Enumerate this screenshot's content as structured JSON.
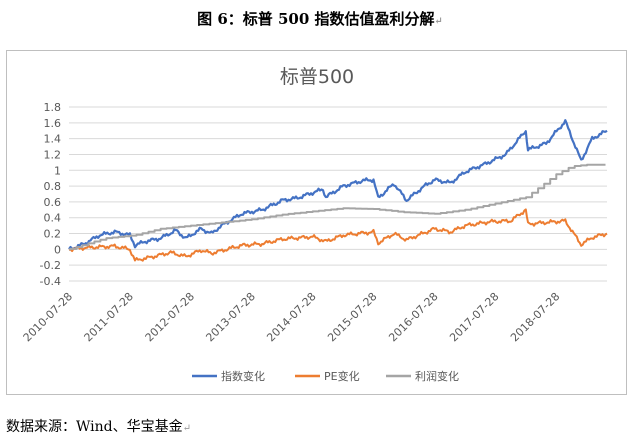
{
  "caption": "图 6：标普 500 指数估值盈利分解",
  "caption_mark": "↵",
  "source_note": "数据来源：Wind、华宝基金",
  "source_mark": "↵",
  "colors": {
    "index": "#4472c4",
    "pe": "#ed7d31",
    "profit": "#a5a5a5",
    "grid": "#d9d9d9",
    "axis_text": "#595959",
    "title": "#595959"
  },
  "chart_data": {
    "type": "line",
    "title": "标普500",
    "xlabel": "",
    "ylabel": "",
    "ylim": [
      -0.4,
      1.8
    ],
    "y_ticks": [
      "1.8",
      "1.6",
      "1.4",
      "1.2",
      "1",
      "0.8",
      "0.6",
      "0.4",
      "0.2",
      "0",
      "-0.2",
      "-0.4"
    ],
    "y_tick_values": [
      1.8,
      1.6,
      1.4,
      1.2,
      1.0,
      0.8,
      0.6,
      0.4,
      0.2,
      0,
      -0.2,
      -0.4
    ],
    "x_range": [
      "2010-07-28",
      "2019-05-28"
    ],
    "x_ticks": [
      "2010-07-28",
      "2011-07-28",
      "2012-07-28",
      "2013-07-28",
      "2014-07-28",
      "2015-07-28",
      "2016-07-28",
      "2017-07-28",
      "2018-07-28"
    ],
    "grid": "horizontal",
    "legend_position": "bottom",
    "series": [
      {
        "name": "指数变化",
        "color": "#4472c4",
        "points": [
          [
            "2010-07-28",
            0.0
          ],
          [
            "2010-10-28",
            0.07
          ],
          [
            "2011-01-28",
            0.18
          ],
          [
            "2011-04-28",
            0.22
          ],
          [
            "2011-07-28",
            0.18
          ],
          [
            "2011-08-28",
            0.05
          ],
          [
            "2011-10-28",
            0.1
          ],
          [
            "2012-01-28",
            0.14
          ],
          [
            "2012-04-28",
            0.24
          ],
          [
            "2012-06-28",
            0.14
          ],
          [
            "2012-09-28",
            0.26
          ],
          [
            "2012-11-28",
            0.2
          ],
          [
            "2013-01-28",
            0.3
          ],
          [
            "2013-05-28",
            0.45
          ],
          [
            "2013-09-28",
            0.5
          ],
          [
            "2014-01-28",
            0.62
          ],
          [
            "2014-04-28",
            0.65
          ],
          [
            "2014-09-28",
            0.76
          ],
          [
            "2014-10-15",
            0.66
          ],
          [
            "2015-01-28",
            0.8
          ],
          [
            "2015-05-28",
            0.87
          ],
          [
            "2015-07-28",
            0.88
          ],
          [
            "2015-08-25",
            0.65
          ],
          [
            "2015-11-28",
            0.83
          ],
          [
            "2016-02-11",
            0.62
          ],
          [
            "2016-05-28",
            0.8
          ],
          [
            "2016-07-28",
            0.88
          ],
          [
            "2016-11-01",
            0.84
          ],
          [
            "2017-01-28",
            0.98
          ],
          [
            "2017-05-28",
            1.08
          ],
          [
            "2017-09-28",
            1.2
          ],
          [
            "2018-01-26",
            1.5
          ],
          [
            "2018-02-08",
            1.26
          ],
          [
            "2018-05-28",
            1.34
          ],
          [
            "2018-09-20",
            1.62
          ],
          [
            "2018-12-24",
            1.12
          ],
          [
            "2019-02-28",
            1.4
          ],
          [
            "2019-05-28",
            1.5
          ]
        ]
      },
      {
        "name": "PE变化",
        "color": "#ed7d31",
        "points": [
          [
            "2010-07-28",
            0.0
          ],
          [
            "2010-10-28",
            0.02
          ],
          [
            "2011-04-28",
            0.04
          ],
          [
            "2011-07-28",
            0.0
          ],
          [
            "2011-08-28",
            -0.14
          ],
          [
            "2011-11-28",
            -0.1
          ],
          [
            "2012-03-28",
            -0.04
          ],
          [
            "2012-06-28",
            -0.09
          ],
          [
            "2012-09-28",
            -0.01
          ],
          [
            "2012-11-28",
            -0.05
          ],
          [
            "2013-05-28",
            0.05
          ],
          [
            "2013-09-28",
            0.07
          ],
          [
            "2014-01-28",
            0.13
          ],
          [
            "2014-07-28",
            0.16
          ],
          [
            "2014-10-15",
            0.1
          ],
          [
            "2015-01-28",
            0.18
          ],
          [
            "2015-07-28",
            0.22
          ],
          [
            "2015-08-25",
            0.08
          ],
          [
            "2015-11-28",
            0.2
          ],
          [
            "2016-02-11",
            0.12
          ],
          [
            "2016-07-28",
            0.26
          ],
          [
            "2016-11-01",
            0.22
          ],
          [
            "2017-01-28",
            0.3
          ],
          [
            "2017-06-28",
            0.35
          ],
          [
            "2017-10-28",
            0.36
          ],
          [
            "2018-01-26",
            0.5
          ],
          [
            "2018-02-08",
            0.32
          ],
          [
            "2018-05-28",
            0.34
          ],
          [
            "2018-09-20",
            0.36
          ],
          [
            "2018-12-24",
            0.06
          ],
          [
            "2019-02-28",
            0.15
          ],
          [
            "2019-05-28",
            0.2
          ]
        ]
      },
      {
        "name": "利润变化",
        "color": "#a5a5a5",
        "points": [
          [
            "2010-07-28",
            0.0
          ],
          [
            "2011-02-28",
            0.14
          ],
          [
            "2011-08-28",
            0.18
          ],
          [
            "2012-01-28",
            0.26
          ],
          [
            "2012-07-28",
            0.3
          ],
          [
            "2013-01-28",
            0.34
          ],
          [
            "2013-07-28",
            0.38
          ],
          [
            "2014-01-28",
            0.44
          ],
          [
            "2014-07-28",
            0.48
          ],
          [
            "2015-01-28",
            0.52
          ],
          [
            "2015-07-28",
            0.51
          ],
          [
            "2016-01-28",
            0.47
          ],
          [
            "2016-07-28",
            0.45
          ],
          [
            "2017-01-28",
            0.5
          ],
          [
            "2017-07-28",
            0.58
          ],
          [
            "2018-01-28",
            0.66
          ],
          [
            "2018-04-28",
            0.8
          ],
          [
            "2018-07-28",
            0.95
          ],
          [
            "2018-10-28",
            1.05
          ],
          [
            "2019-01-28",
            1.07
          ],
          [
            "2019-05-28",
            1.07
          ]
        ]
      }
    ]
  }
}
